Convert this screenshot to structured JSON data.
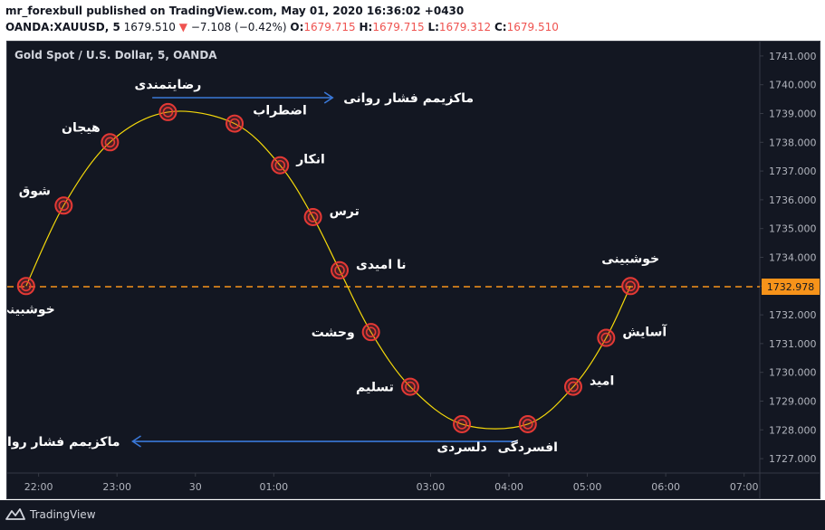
{
  "header": {
    "line1": "mr_forexbull published on TradingView.com, May 01, 2020 16:36:02 +0430",
    "symbol": "OANDA:XAUUSD, 5",
    "price": "1679.510",
    "change_arrow": "▼",
    "change": "−7.108 (−0.42%)",
    "o_label": "O:",
    "o_value": "1679.715",
    "h_label": "H:",
    "h_value": "1679.715",
    "l_label": "L:",
    "l_value": "1679.312",
    "c_label": "C:",
    "c_value": "1679.510"
  },
  "footer": {
    "brand": "TradingView"
  },
  "colors": {
    "background": "#131722",
    "curve": "#f5d90a",
    "marker": "#e53935",
    "dashed_line": "#f7931a",
    "arrow": "#3a78d8",
    "text_light": "#ffffff",
    "axis_text": "#b2b5be",
    "header_red": "#ef5350"
  },
  "chart_data": {
    "type": "line",
    "title": "Gold Spot / U.S. Dollar, 5, OANDA",
    "x_tick_labels": [
      "22:00",
      "23:00",
      "30",
      "01:00",
      "03:00",
      "04:00",
      "05:00",
      "06:00",
      "07:00"
    ],
    "x_ticks_hours": [
      22,
      23,
      24,
      25,
      27,
      28,
      29,
      30,
      31
    ],
    "xlim_hours": [
      21.6,
      31.2
    ],
    "y_tick_labels": [
      "1741.000",
      "1740.000",
      "1739.000",
      "1738.000",
      "1737.000",
      "1736.000",
      "1735.000",
      "1734.000",
      "1733.000",
      "1732.000",
      "1731.000",
      "1730.000",
      "1729.000",
      "1728.000",
      "1727.000"
    ],
    "y_ticks": [
      1741,
      1740,
      1739,
      1738,
      1737,
      1736,
      1735,
      1734,
      1733,
      1732,
      1731,
      1730,
      1729,
      1728,
      1727
    ],
    "ylim": [
      1726.5,
      1741.5
    ],
    "reference_line": {
      "value": 1732.978,
      "label": "1732.978"
    },
    "points": [
      {
        "x": 21.84,
        "y": 1733.0,
        "label": "خوشبینی",
        "label_pos": "below"
      },
      {
        "x": 22.32,
        "y": 1735.8,
        "label": "شوق",
        "label_pos": "upper-left"
      },
      {
        "x": 22.91,
        "y": 1738.0,
        "label": "هیجان",
        "label_pos": "upper-left"
      },
      {
        "x": 23.65,
        "y": 1739.05,
        "label": "رضایتمندی",
        "label_pos": "above"
      },
      {
        "x": 24.5,
        "y": 1738.65,
        "label": "اضطراب",
        "label_pos": "upper-right"
      },
      {
        "x": 25.08,
        "y": 1737.2,
        "label": "انکار",
        "label_pos": "right"
      },
      {
        "x": 25.5,
        "y": 1735.4,
        "label": "ترس",
        "label_pos": "right"
      },
      {
        "x": 25.84,
        "y": 1733.55,
        "label": "نا امیدی",
        "label_pos": "right"
      },
      {
        "x": 26.24,
        "y": 1731.4,
        "label": "وحشت",
        "label_pos": "left"
      },
      {
        "x": 26.74,
        "y": 1729.5,
        "label": "تسلیم",
        "label_pos": "left"
      },
      {
        "x": 27.4,
        "y": 1728.2,
        "label": "دلسردی",
        "label_pos": "below"
      },
      {
        "x": 28.24,
        "y": 1728.2,
        "label": "افسردگی",
        "label_pos": "below"
      },
      {
        "x": 28.82,
        "y": 1729.5,
        "label": "امید",
        "label_pos": "right"
      },
      {
        "x": 29.24,
        "y": 1731.2,
        "label": "آسایش",
        "label_pos": "right"
      },
      {
        "x": 29.55,
        "y": 1733.0,
        "label": "خوشبینی",
        "label_pos": "above"
      }
    ],
    "arrows": [
      {
        "from_x": 23.45,
        "to_x": 25.75,
        "y": 1739.55,
        "label": "ماکزیمم فشار روانی",
        "label_pos": "right"
      },
      {
        "from_x": 28.1,
        "to_x": 23.2,
        "y": 1727.6,
        "label": "ماکزیمم فشار روانی",
        "label_pos": "left"
      }
    ]
  }
}
